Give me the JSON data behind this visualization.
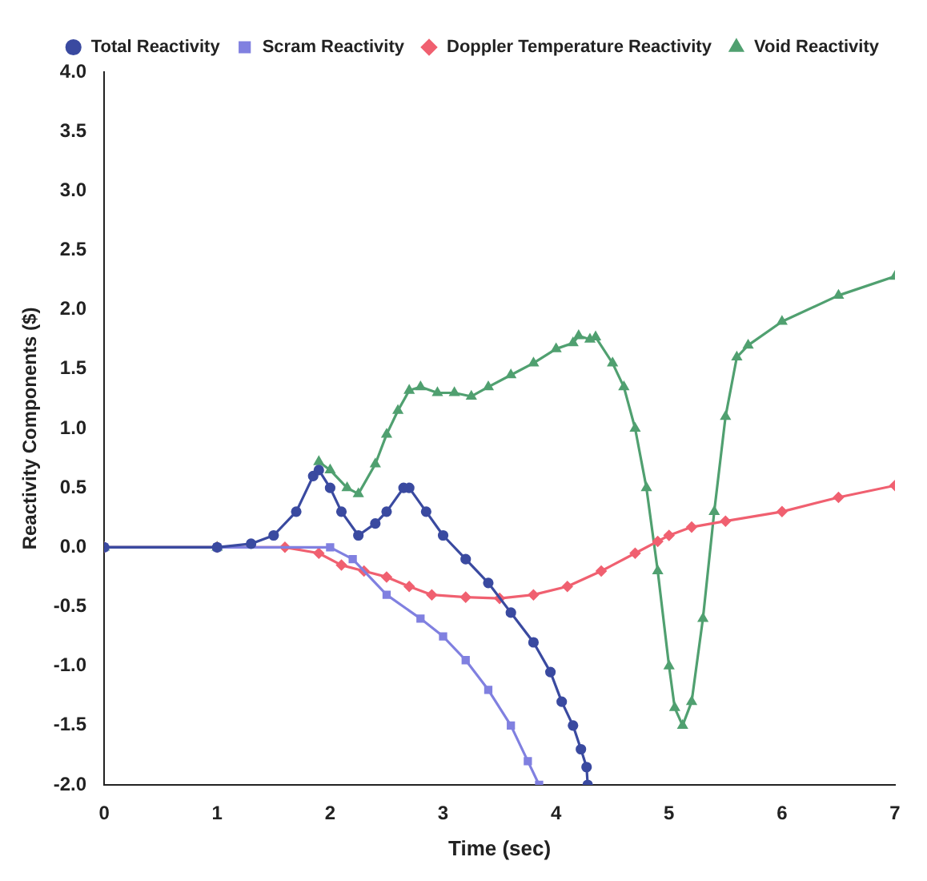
{
  "chart_data": {
    "type": "line",
    "xlabel": "Time (sec)",
    "ylabel": "Reactivity Components ($)",
    "xlim": [
      0,
      7
    ],
    "xticks": [
      0,
      1,
      2,
      3,
      4,
      5,
      6,
      7
    ],
    "ylim": [
      -2,
      4
    ],
    "yticks": [
      {
        "value": -2,
        "label": "-2.0"
      },
      {
        "value": -1.5,
        "label": "-1.5"
      },
      {
        "value": -1,
        "label": "-1.0"
      },
      {
        "value": -0.5,
        "label": "-0.5"
      },
      {
        "value": 0,
        "label": "0.0"
      },
      {
        "value": 0.5,
        "label": "0.5"
      },
      {
        "value": 1,
        "label": "1.0"
      },
      {
        "value": 1.5,
        "label": "1.5"
      },
      {
        "value": 2,
        "label": "2.0"
      },
      {
        "value": 2.5,
        "label": "2.5"
      },
      {
        "value": 3,
        "label": "3.0"
      },
      {
        "value": 3.5,
        "label": "3.5"
      },
      {
        "value": 4,
        "label": "4.0"
      }
    ],
    "grid": false,
    "legend": "top right",
    "line_style": "solid",
    "series": [
      {
        "name": "Total Reactivity",
        "color": "#3a4aa0",
        "marker": "circle",
        "x": [
          0,
          1,
          1.3,
          1.5,
          1.7,
          1.85,
          1.9,
          2.0,
          2.1,
          2.25,
          2.4,
          2.5,
          2.65,
          2.7,
          2.85,
          3.0,
          3.2,
          3.4,
          3.6,
          3.8,
          3.95,
          4.05,
          4.15,
          4.22,
          4.27,
          4.28
        ],
        "values": [
          0,
          0,
          0.03,
          0.1,
          0.3,
          0.6,
          0.65,
          0.5,
          0.3,
          0.1,
          0.2,
          0.3,
          0.5,
          0.5,
          0.3,
          0.1,
          -0.1,
          -0.3,
          -0.55,
          -0.8,
          -1.05,
          -1.3,
          -1.5,
          -1.7,
          -1.85,
          -2.0
        ]
      },
      {
        "name": "Scram Reactivity",
        "color": "#8080e0",
        "marker": "square",
        "x": [
          0,
          1,
          2.0,
          2.2,
          2.5,
          2.8,
          3.0,
          3.2,
          3.4,
          3.6,
          3.75,
          3.85
        ],
        "values": [
          0,
          0,
          0,
          -0.1,
          -0.4,
          -0.6,
          -0.75,
          -0.95,
          -1.2,
          -1.5,
          -1.8,
          -2.0
        ]
      },
      {
        "name": "Doppler Temperature Reactivity",
        "color": "#f06070",
        "marker": "diamond",
        "x": [
          0,
          1,
          1.6,
          1.9,
          2.1,
          2.3,
          2.5,
          2.7,
          2.9,
          3.2,
          3.5,
          3.8,
          4.1,
          4.4,
          4.7,
          4.9,
          5.0,
          5.2,
          5.5,
          6.0,
          6.5,
          7.0
        ],
        "values": [
          0,
          0,
          0,
          -0.05,
          -0.15,
          -0.2,
          -0.25,
          -0.33,
          -0.4,
          -0.42,
          -0.43,
          -0.4,
          -0.33,
          -0.2,
          -0.05,
          0.05,
          0.1,
          0.17,
          0.22,
          0.3,
          0.42,
          0.52
        ]
      },
      {
        "name": "Void Reactivity",
        "color": "#50a070",
        "marker": "triangle",
        "x": [
          0,
          1,
          1.3,
          1.5,
          1.7,
          1.9,
          2.0,
          2.15,
          2.25,
          2.4,
          2.5,
          2.6,
          2.7,
          2.8,
          2.95,
          3.1,
          3.25,
          3.4,
          3.6,
          3.8,
          4.0,
          4.15,
          4.2,
          4.3,
          4.35,
          4.5,
          4.6,
          4.7,
          4.8,
          4.9,
          5.0,
          5.05,
          5.12,
          5.2,
          5.3,
          5.4,
          5.5,
          5.6,
          5.7,
          6.0,
          6.5,
          7.0
        ],
        "values": [
          0,
          0,
          null,
          null,
          null,
          0.72,
          0.65,
          0.5,
          0.45,
          0.7,
          0.95,
          1.15,
          1.32,
          1.35,
          1.3,
          1.3,
          1.27,
          1.35,
          1.45,
          1.55,
          1.67,
          1.72,
          1.78,
          1.75,
          1.77,
          1.55,
          1.35,
          1.0,
          0.5,
          -0.2,
          -1.0,
          -1.35,
          -1.5,
          -1.3,
          -0.6,
          0.3,
          1.1,
          1.6,
          1.7,
          1.9,
          2.12,
          2.28
        ]
      }
    ]
  }
}
